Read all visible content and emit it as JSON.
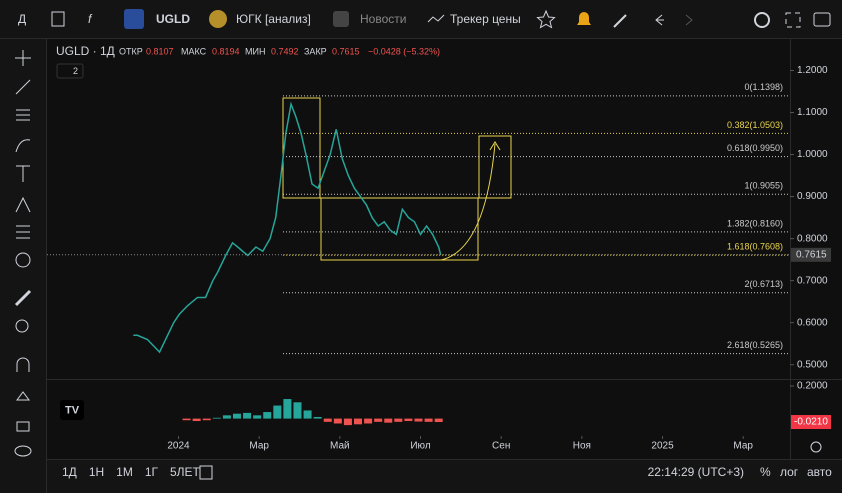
{
  "toolbar": {
    "interval": "Д",
    "symbol": "UGLD",
    "company": "ЮГК [анализ]",
    "news": "Новости",
    "tracker": "Трекер цены"
  },
  "legend": {
    "symbol": "UGLD · 1Д",
    "open_label": "ОТКР",
    "open": "0.8107",
    "high_label": "МАКС",
    "high": "0.8194",
    "low_label": "МИН",
    "low": "0.7492",
    "close_label": "ЗАКР",
    "close": "0.7615",
    "change": "−0.0428 (−5.32%)",
    "badge": "2"
  },
  "chart_data": {
    "type": "line",
    "color": "#26a69a",
    "x": [
      -1.12,
      -1.02,
      -0.77,
      -0.57,
      -0.47,
      -0.27,
      -0.12,
      0.02,
      0.22,
      0.47,
      0.67,
      0.85,
      0.97,
      1.17,
      1.34,
      1.47,
      1.59,
      1.72,
      1.92,
      2.09,
      2.27,
      2.41,
      2.54,
      2.66,
      2.79,
      2.91,
      3.04,
      3.16,
      3.31,
      3.46,
      3.61,
      3.76,
      3.91,
      4.06,
      4.21,
      4.36,
      4.51,
      4.66,
      4.8,
      4.95,
      5.1,
      5.25,
      5.4,
      5.55,
      5.7,
      5.85,
      6.0,
      6.15,
      6.3,
      6.45,
      6.5
    ],
    "values": [
      0.57,
      0.57,
      0.56,
      0.54,
      0.53,
      0.57,
      0.6,
      0.62,
      0.64,
      0.66,
      0.66,
      0.7,
      0.72,
      0.76,
      0.79,
      0.78,
      0.77,
      0.76,
      0.78,
      0.77,
      0.8,
      0.85,
      0.95,
      1.05,
      1.12,
      1.09,
      1.05,
      1.0,
      0.93,
      0.92,
      0.96,
      1.0,
      1.06,
      0.99,
      0.95,
      0.92,
      0.9,
      0.88,
      0.85,
      0.83,
      0.84,
      0.82,
      0.81,
      0.87,
      0.85,
      0.84,
      0.81,
      0.83,
      0.81,
      0.78,
      0.7615
    ],
    "xlim": [
      -3.26,
      15.16
    ],
    "xticks": [
      {
        "value": 0,
        "label": "2024"
      },
      {
        "value": 2,
        "label": "Мар"
      },
      {
        "value": 4,
        "label": "Май"
      },
      {
        "value": 6,
        "label": "Июл"
      },
      {
        "value": 8,
        "label": "Сен"
      },
      {
        "value": 10,
        "label": "Ноя"
      },
      {
        "value": 12,
        "label": "2025"
      },
      {
        "value": 14,
        "label": "Мар"
      }
    ],
    "ylim": [
      0.4684,
      1.2726
    ],
    "yticks": [
      {
        "value": 1.2,
        "label": "1.2000"
      },
      {
        "value": 1.1,
        "label": "1.1000"
      },
      {
        "value": 1.0,
        "label": "1.0000"
      },
      {
        "value": 0.9,
        "label": "0.9000"
      },
      {
        "value": 0.8,
        "label": "0.8000"
      },
      {
        "value": 0.7,
        "label": "0.7000"
      },
      {
        "value": 0.6,
        "label": "0.6000"
      },
      {
        "value": 0.5,
        "label": "0.5000"
      }
    ],
    "last_price": {
      "value": 0.7615,
      "label": "0.7615"
    },
    "fib_levels": [
      {
        "value": 1.1398,
        "label": "0(1.1398)",
        "color": "#cccccc"
      },
      {
        "value": 1.0503,
        "label": "0.382(1.0503)",
        "color": "#e8d44d"
      },
      {
        "value": 0.995,
        "label": "0.618(0.9950)",
        "color": "#cccccc"
      },
      {
        "value": 0.9055,
        "label": "1(0.9055)",
        "color": "#cccccc"
      },
      {
        "value": 0.816,
        "label": "1.382(0.8160)",
        "color": "#cccccc"
      },
      {
        "value": 0.7608,
        "label": "1.618(0.7608)",
        "color": "#e8d44d"
      },
      {
        "value": 0.6713,
        "label": "2(0.6713)",
        "color": "#cccccc"
      },
      {
        "value": 0.5265,
        "label": "2.618(0.5265)",
        "color": "#cccccc"
      }
    ],
    "oscillator": {
      "x": [
        0.2,
        0.45,
        0.7,
        0.95,
        1.2,
        1.45,
        1.7,
        1.95,
        2.2,
        2.45,
        2.7,
        2.95,
        3.2,
        3.45,
        3.7,
        3.95,
        4.2,
        4.45,
        4.7,
        4.95,
        5.2,
        5.45,
        5.7,
        5.95,
        6.2,
        6.45
      ],
      "values": [
        -0.01,
        -0.015,
        -0.01,
        0.005,
        0.02,
        0.03,
        0.035,
        0.02,
        0.04,
        0.08,
        0.12,
        0.1,
        0.05,
        0.01,
        -0.02,
        -0.03,
        -0.04,
        -0.035,
        -0.03,
        -0.02,
        -0.025,
        -0.02,
        -0.015,
        -0.018,
        -0.02,
        -0.021
      ],
      "ylim": [
        -0.07,
        0.2
      ],
      "yticks": [
        {
          "value": 0.2,
          "label": "0.2000"
        }
      ],
      "last": {
        "value": -0.021,
        "label": "-0.0210"
      },
      "up_color": "#26a69a",
      "down_color": "#ef5350"
    }
  },
  "bottom_bar": {
    "ranges": [
      "1Д",
      "1Н",
      "1М",
      "1Г",
      "5ЛЕТ"
    ],
    "time": "22:14:29 (UTC+3)",
    "percent": "%",
    "log": "лог",
    "auto": "авто"
  }
}
